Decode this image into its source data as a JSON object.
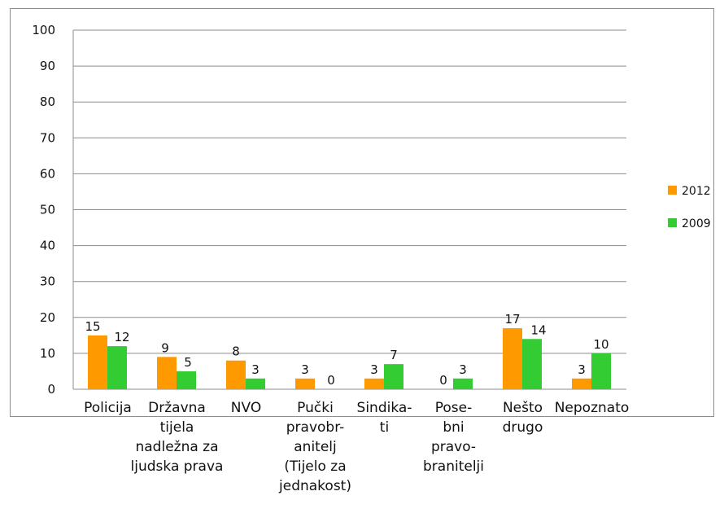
{
  "chart_data": {
    "type": "bar",
    "title": "",
    "xlabel": "",
    "ylabel": "",
    "ylim": [
      0,
      100
    ],
    "yticks": [
      0,
      10,
      20,
      30,
      40,
      50,
      60,
      70,
      80,
      90,
      100
    ],
    "grid": true,
    "legend_position": "right",
    "categories": [
      [
        "Policija"
      ],
      [
        "Državna",
        "tijela",
        "nadležna za",
        "ljudska prava"
      ],
      [
        "NVO"
      ],
      [
        "Pučki",
        "pravobr-",
        "anitelj",
        "(Tijelo za",
        "jednakost)"
      ],
      [
        "Sindika-",
        "ti"
      ],
      [
        "Pose-",
        "bni",
        "pravo-",
        "branitelji"
      ],
      [
        "Nešto",
        "drugo"
      ],
      [
        "Nepoznato"
      ]
    ],
    "series": [
      {
        "name": "2012",
        "color": "#ff9900",
        "values": [
          15,
          9,
          8,
          3,
          3,
          0,
          17,
          3
        ]
      },
      {
        "name": "2009",
        "color": "#33cc33",
        "values": [
          12,
          5,
          3,
          0,
          7,
          3,
          14,
          10
        ]
      }
    ]
  }
}
